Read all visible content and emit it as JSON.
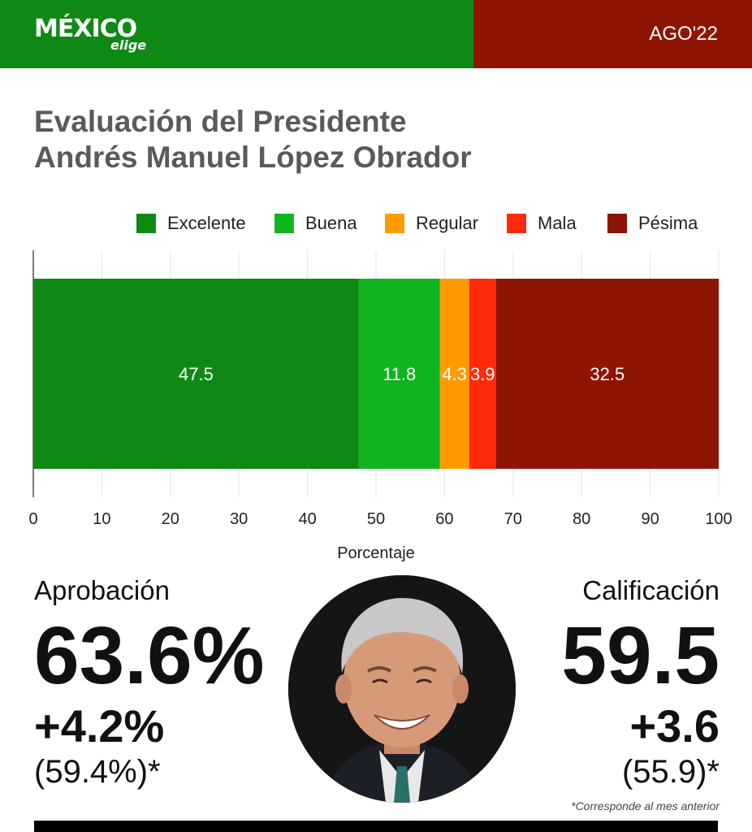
{
  "header": {
    "logo_main": "MÉXICO",
    "logo_sub": "elige",
    "date": "AGO'22",
    "colors": {
      "left": "#0e8a14",
      "right": "#8e1503"
    }
  },
  "title": {
    "line1": "Evaluación del Presidente",
    "line2": "Andrés Manuel López Obrador"
  },
  "chart_data": {
    "type": "bar",
    "orientation": "horizontal-stacked",
    "series": [
      {
        "name": "Excelente",
        "value": 47.5,
        "color": "#0e8a14"
      },
      {
        "name": "Buena",
        "value": 11.8,
        "color": "#0fb51f"
      },
      {
        "name": "Regular",
        "value": 4.3,
        "color": "#ff9a00"
      },
      {
        "name": "Mala",
        "value": 3.9,
        "color": "#ff2a0a"
      },
      {
        "name": "Pésima",
        "value": 32.5,
        "color": "#8e1503"
      }
    ],
    "xlabel": "Porcentaje",
    "xlim": [
      0,
      100
    ],
    "xticks": [
      0,
      10,
      20,
      30,
      40,
      50,
      60,
      70,
      80,
      90,
      100
    ],
    "grid": true,
    "legend": "top"
  },
  "approval": {
    "label": "Aprobación",
    "value": "63.6%",
    "change": "+4.2%",
    "previous": "(59.4%)*"
  },
  "rating": {
    "label": "Calificación",
    "value": "59.5",
    "change": "+3.6",
    "previous": "(55.9)*"
  },
  "footnote": "*Corresponde al mes anterior",
  "portrait_icon": "president-portrait-icon"
}
